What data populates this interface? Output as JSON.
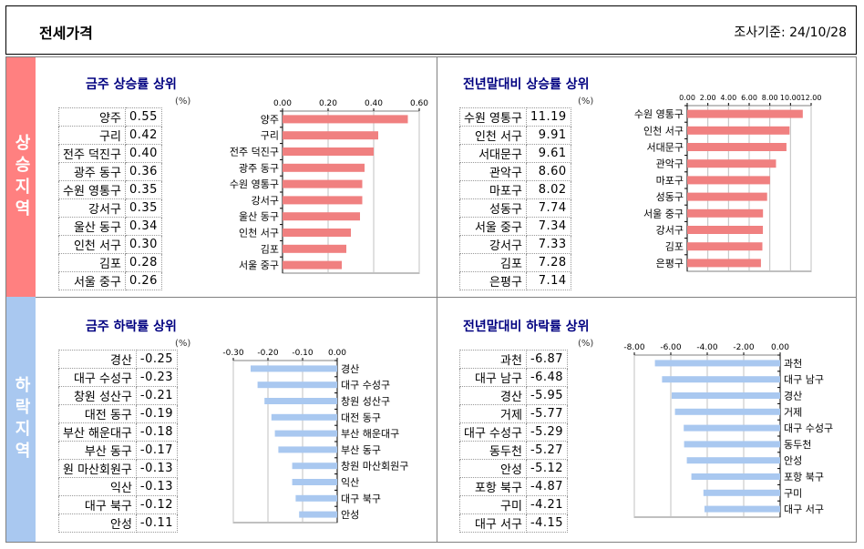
{
  "header": {
    "title": "전세가격",
    "date": "조사기준: 24/10/28"
  },
  "side_labels": {
    "rise": "상승지역",
    "fall": "하락지역"
  },
  "unit": "(%)",
  "chart_data": [
    {
      "id": "weekly-rise",
      "type": "bar",
      "title": "금주 상승률 상위",
      "categories": [
        "양주",
        "구리",
        "전주 덕진구",
        "광주 동구",
        "수원 영통구",
        "강서구",
        "울산 동구",
        "인천 서구",
        "김포",
        "서울 중구"
      ],
      "values": [
        0.55,
        0.42,
        0.4,
        0.36,
        0.35,
        0.35,
        0.34,
        0.3,
        0.28,
        0.26
      ],
      "value_labels": [
        "0.55",
        "0.42",
        "0.40",
        "0.36",
        "0.35",
        "0.35",
        "0.34",
        "0.30",
        "0.28",
        "0.26"
      ],
      "xlim": [
        0,
        0.6
      ],
      "ticks": [
        0,
        0.2,
        0.4,
        0.6
      ],
      "tick_labels": [
        "0.00",
        "0.20",
        "0.40",
        "0.60"
      ],
      "axis": "top",
      "color": "#f08080"
    },
    {
      "id": "yearly-rise",
      "type": "bar",
      "title": "전년말대비 상승률 상위",
      "categories": [
        "수원 영통구",
        "인천 서구",
        "서대문구",
        "관악구",
        "마포구",
        "성동구",
        "서울 중구",
        "강서구",
        "김포",
        "은평구"
      ],
      "values": [
        11.19,
        9.91,
        9.61,
        8.6,
        8.02,
        7.74,
        7.34,
        7.33,
        7.28,
        7.14
      ],
      "value_labels": [
        "11.19",
        "9.91",
        "9.61",
        "8.60",
        "8.02",
        "7.74",
        "7.34",
        "7.33",
        "7.28",
        "7.14"
      ],
      "xlim": [
        0,
        12
      ],
      "ticks": [
        0,
        2,
        4,
        6,
        8,
        10,
        12
      ],
      "tick_labels": [
        "0.00",
        "2.00",
        "4.00",
        "6.00",
        "8.00",
        "10.00",
        "12.00"
      ],
      "axis": "top",
      "color": "#f08080"
    },
    {
      "id": "weekly-fall",
      "type": "bar",
      "title": "금주 하락률 상위",
      "categories": [
        "경산",
        "대구 수성구",
        "창원 성산구",
        "대전 동구",
        "부산 해운대구",
        "부산 동구",
        "창원 마산회원구",
        "익산",
        "대구 북구",
        "안성"
      ],
      "table_labels": [
        "경산",
        "대구 수성구",
        "창원 성산구",
        "대전 동구",
        "부산 해운대구",
        "부산 동구",
        "원 마산회원구",
        "익산",
        "대구 북구",
        "안성"
      ],
      "values": [
        -0.25,
        -0.23,
        -0.21,
        -0.19,
        -0.18,
        -0.17,
        -0.13,
        -0.13,
        -0.12,
        -0.11
      ],
      "value_labels": [
        "-0.25",
        "-0.23",
        "-0.21",
        "-0.19",
        "-0.18",
        "-0.17",
        "-0.13",
        "-0.13",
        "-0.12",
        "-0.11"
      ],
      "xlim": [
        -0.3,
        0
      ],
      "ticks": [
        -0.3,
        -0.2,
        -0.1,
        0
      ],
      "tick_labels": [
        "-0.30",
        "-0.20",
        "-0.10",
        "0.00"
      ],
      "axis": "top",
      "color": "#a9c8f0"
    },
    {
      "id": "yearly-fall",
      "type": "bar",
      "title": "전년말대비 하락률 상위",
      "categories": [
        "과천",
        "대구 남구",
        "경산",
        "거제",
        "대구 수성구",
        "동두천",
        "안성",
        "포항 북구",
        "구미",
        "대구 서구"
      ],
      "values": [
        -6.87,
        -6.48,
        -5.95,
        -5.77,
        -5.29,
        -5.27,
        -5.12,
        -4.87,
        -4.21,
        -4.15
      ],
      "value_labels": [
        "-6.87",
        "-6.48",
        "-5.95",
        "-5.77",
        "-5.29",
        "-5.27",
        "-5.12",
        "-4.87",
        "-4.21",
        "-4.15"
      ],
      "xlim": [
        -8,
        0
      ],
      "ticks": [
        -8,
        -6,
        -4,
        -2,
        0
      ],
      "tick_labels": [
        "-8.00",
        "-6.00",
        "-4.00",
        "-2.00",
        "0.00"
      ],
      "axis": "top",
      "color": "#a9c8f0"
    }
  ]
}
